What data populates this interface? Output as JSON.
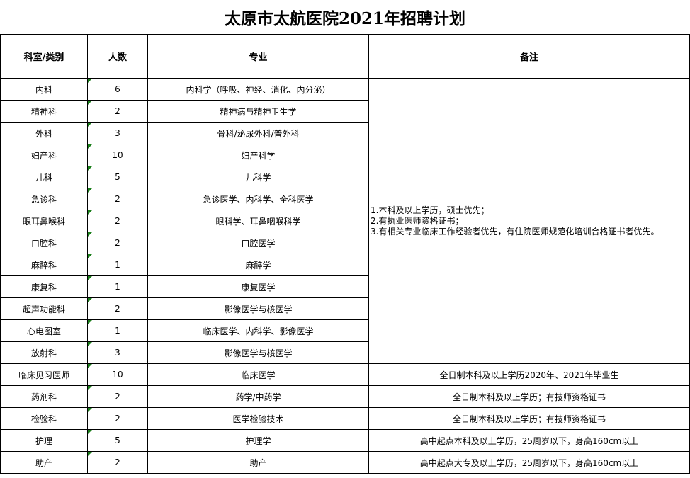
{
  "title": "太原市太航医院2021年招聘计划",
  "headers": [
    "科室/类别",
    "人数",
    "专业",
    "备注"
  ],
  "shared_note": [
    "1.本科及以上学历，硕士优先；",
    "2.有执业医师资格证书；",
    "3.有相关专业临床工作经验者优先，有住院医师规范化培训合格证书者优先。"
  ],
  "rows": [
    {
      "dept": "内科",
      "count": "6",
      "major": "内科学（呼吸、神经、消化、内分泌）"
    },
    {
      "dept": "精神科",
      "count": "2",
      "major": "精神病与精神卫生学"
    },
    {
      "dept": "外科",
      "count": "3",
      "major": "骨科/泌尿外科/普外科"
    },
    {
      "dept": "妇产科",
      "count": "10",
      "major": "妇产科学"
    },
    {
      "dept": "儿科",
      "count": "5",
      "major": "儿科学"
    },
    {
      "dept": "急诊科",
      "count": "2",
      "major": "急诊医学、内科学、全科医学"
    },
    {
      "dept": "眼耳鼻喉科",
      "count": "2",
      "major": "眼科学、耳鼻咽喉科学"
    },
    {
      "dept": "口腔科",
      "count": "2",
      "major": "口腔医学"
    },
    {
      "dept": "麻醉科",
      "count": "1",
      "major": "麻醉学"
    },
    {
      "dept": "康复科",
      "count": "1",
      "major": "康复医学"
    },
    {
      "dept": "超声功能科",
      "count": "2",
      "major": "影像医学与核医学"
    },
    {
      "dept": "心电图室",
      "count": "1",
      "major": "临床医学、内科学、影像医学"
    },
    {
      "dept": "放射科",
      "count": "3",
      "major": "影像医学与核医学"
    },
    {
      "dept": "临床见习医师",
      "count": "10",
      "major": "临床医学",
      "note": "全日制本科及以上学历2020年、2021年毕业生"
    },
    {
      "dept": "药剂科",
      "count": "2",
      "major": "药学/中药学",
      "note": "全日制本科及以上学历；有技师资格证书"
    },
    {
      "dept": "检验科",
      "count": "2",
      "major": "医学检验技术",
      "note": "全日制本科及以上学历；有技师资格证书"
    },
    {
      "dept": "护理",
      "count": "5",
      "major": "护理学",
      "note": "高中起点本科及以上学历，25周岁以下，身高160cm以上"
    },
    {
      "dept": "助产",
      "count": "2",
      "major": "助产",
      "note": "高中起点大专及以上学历，25周岁以下，身高160cm以上"
    }
  ]
}
